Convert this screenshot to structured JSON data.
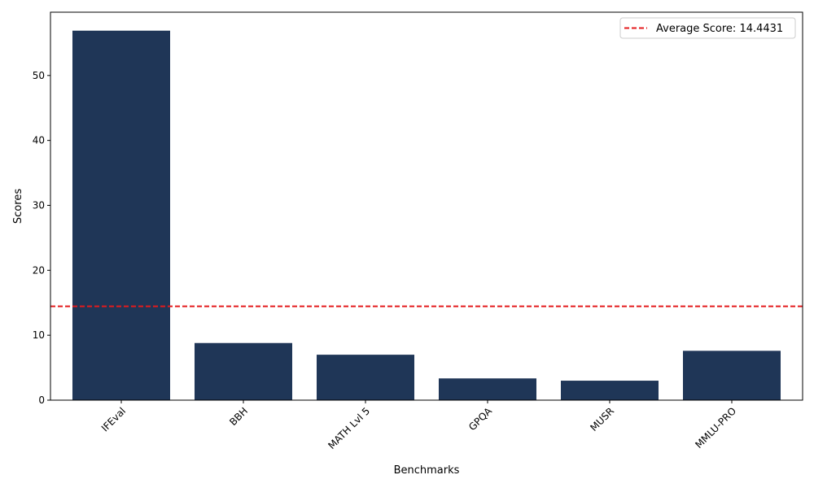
{
  "chart_data": {
    "type": "bar",
    "categories": [
      "IFEval",
      "BBH",
      "MATH Lvl 5",
      "GPQA",
      "MUSR",
      "MMLU-PRO"
    ],
    "values": [
      56.9,
      8.8,
      7.0,
      3.35,
      3.0,
      7.6
    ],
    "xlabel": "Benchmarks",
    "ylabel": "Scores",
    "ylim": [
      0,
      59.745
    ],
    "yticks": [
      0,
      10,
      20,
      30,
      40,
      50
    ],
    "bar_color": "#1f3657",
    "average_line": {
      "value": 14.4431,
      "label": "Average Score: 14.4431",
      "color": "#e41a1c",
      "style": "dashed"
    },
    "legend_position": "top-right",
    "grid": false,
    "xtick_rotation": 45
  }
}
